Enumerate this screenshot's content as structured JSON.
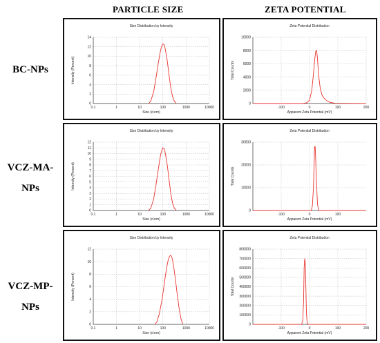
{
  "header": {
    "particle_size": "PARTICLE SIZE",
    "zeta_potential": "ZETA POTENTIAL"
  },
  "rows": [
    {
      "label_lines": [
        "BC-NPs"
      ]
    },
    {
      "label_lines": [
        "VCZ-MA-",
        "NPs"
      ]
    },
    {
      "label_lines": [
        "VCZ-MP-",
        "NPs"
      ]
    }
  ],
  "chart_data": [
    {
      "id": "bc-size",
      "type": "line",
      "xscale": "log",
      "title": "Size Distribution by Intensity",
      "xlabel": "Size (d.nm)",
      "ylabel": "Intensity (Percent)",
      "xlim": [
        0.1,
        10000
      ],
      "xticks": [
        0.1,
        1,
        10,
        100,
        1000,
        10000
      ],
      "xtick_labels": [
        "0.1",
        "1",
        "10",
        "100",
        "1000",
        "10000"
      ],
      "ylim": [
        0,
        14
      ],
      "yticks": [
        0,
        2,
        4,
        6,
        8,
        10,
        12,
        14
      ],
      "series": [
        {
          "x": [
            24,
            30,
            40,
            50,
            60,
            70,
            80,
            90,
            100,
            110,
            120,
            130,
            150,
            170,
            190,
            220,
            260,
            310,
            380
          ],
          "y": [
            0,
            0.5,
            2.5,
            5.3,
            7.8,
            9.8,
            11.3,
            12.2,
            12.6,
            12.5,
            12.0,
            11.2,
            9.4,
            7.4,
            5.4,
            3.2,
            1.5,
            0.5,
            0
          ]
        }
      ]
    },
    {
      "id": "bc-zeta",
      "type": "line",
      "xscale": "linear",
      "title": "Zeta Potential Distribution",
      "xlabel": "Apparent Zeta Potential (mV)",
      "ylabel": "Total Counts",
      "xlim": [
        -200,
        200
      ],
      "xticks": [
        -100,
        0,
        100,
        200
      ],
      "xtick_labels": [
        "-100",
        "0",
        "100",
        "200"
      ],
      "ylim": [
        0,
        10000
      ],
      "yticks": [
        0,
        2000,
        4000,
        6000,
        8000,
        10000
      ],
      "series": [
        {
          "x": [
            -200,
            -30,
            -20,
            -10,
            0,
            8,
            14,
            18,
            22,
            25,
            28,
            32,
            38,
            45,
            55,
            70,
            90,
            200
          ],
          "y": [
            0,
            0,
            30,
            120,
            500,
            2000,
            4500,
            6500,
            7900,
            8000,
            6800,
            4300,
            2200,
            1200,
            600,
            200,
            40,
            0
          ]
        }
      ]
    },
    {
      "id": "ma-size",
      "type": "line",
      "xscale": "log",
      "title": "Size Distribution by Intensity",
      "xlabel": "Size (d.nm)",
      "ylabel": "Intensity (Percent)",
      "xlim": [
        0.1,
        10000
      ],
      "xticks": [
        0.1,
        1,
        10,
        100,
        1000,
        10000
      ],
      "xtick_labels": [
        "0.1",
        "1",
        "10",
        "100",
        "1000",
        "10000"
      ],
      "ylim": [
        0,
        12
      ],
      "yticks": [
        0,
        1,
        2,
        3,
        4,
        5,
        6,
        7,
        8,
        9,
        10,
        11,
        12
      ],
      "series": [
        {
          "x": [
            24,
            30,
            40,
            50,
            60,
            70,
            80,
            90,
            100,
            110,
            120,
            130,
            150,
            170,
            190,
            220,
            260,
            310,
            380
          ],
          "y": [
            0,
            0.4,
            2.0,
            4.4,
            6.6,
            8.4,
            9.8,
            10.6,
            11.0,
            10.9,
            10.5,
            9.8,
            8.3,
            6.6,
            4.9,
            2.9,
            1.3,
            0.4,
            0
          ]
        }
      ]
    },
    {
      "id": "ma-zeta",
      "type": "line",
      "xscale": "linear",
      "title": "Zeta Potential Distribution",
      "xlabel": "Apparent Zeta Potential (mV)",
      "ylabel": "Total Counts",
      "xlim": [
        -200,
        200
      ],
      "xticks": [
        -100,
        0,
        100
      ],
      "xtick_labels": [
        "-100",
        "0",
        "100"
      ],
      "ylim": [
        0,
        30000
      ],
      "yticks": [
        0,
        10000,
        20000,
        30000
      ],
      "series": [
        {
          "x": [
            -200,
            0,
            6,
            10,
            14,
            16,
            18,
            20,
            22,
            24,
            28,
            32,
            200
          ],
          "y": [
            0,
            0,
            0,
            2000,
            10000,
            20000,
            28000,
            28000,
            22000,
            14000,
            3000,
            0,
            0
          ]
        }
      ]
    },
    {
      "id": "mp-size",
      "type": "line",
      "xscale": "log",
      "title": "Size Distribution by Intensity",
      "xlabel": "Size (d.nm)",
      "ylabel": "Intensity (Percent)",
      "xlim": [
        0.1,
        10000
      ],
      "xticks": [
        0.1,
        1,
        10,
        100,
        1000,
        10000
      ],
      "xtick_labels": [
        "0.1",
        "1",
        "10",
        "100",
        "1000",
        "10000"
      ],
      "ylim": [
        0,
        12
      ],
      "yticks": [
        0,
        2,
        4,
        6,
        8,
        10,
        12
      ],
      "series": [
        {
          "x": [
            45,
            55,
            70,
            90,
            110,
            130,
            150,
            170,
            190,
            210,
            230,
            260,
            300,
            350,
            420,
            500,
            600,
            720
          ],
          "y": [
            0,
            0.4,
            1.7,
            3.8,
            6.0,
            7.9,
            9.3,
            10.3,
            10.8,
            11.0,
            10.9,
            10.3,
            8.9,
            7.0,
            4.6,
            2.5,
            0.9,
            0
          ]
        }
      ]
    },
    {
      "id": "mp-zeta",
      "type": "line",
      "xscale": "linear",
      "title": "Zeta Potential Distribution",
      "xlabel": "Apparent Zeta Potential (mV)",
      "ylabel": "Total Counts",
      "xlim": [
        -200,
        200
      ],
      "xticks": [
        -100,
        0,
        100,
        200
      ],
      "xtick_labels": [
        "-100",
        "0",
        "100",
        "200"
      ],
      "ylim": [
        0,
        800000
      ],
      "yticks": [
        0,
        100000,
        200000,
        300000,
        400000,
        500000,
        600000,
        700000,
        800000
      ],
      "series": [
        {
          "x": [
            -200,
            -28,
            -24,
            -21,
            -19,
            -17,
            -15,
            -13,
            -11,
            -8,
            -4,
            200
          ],
          "y": [
            0,
            0,
            40000,
            250000,
            600000,
            700000,
            650000,
            400000,
            120000,
            10000,
            0,
            0
          ]
        }
      ]
    }
  ]
}
